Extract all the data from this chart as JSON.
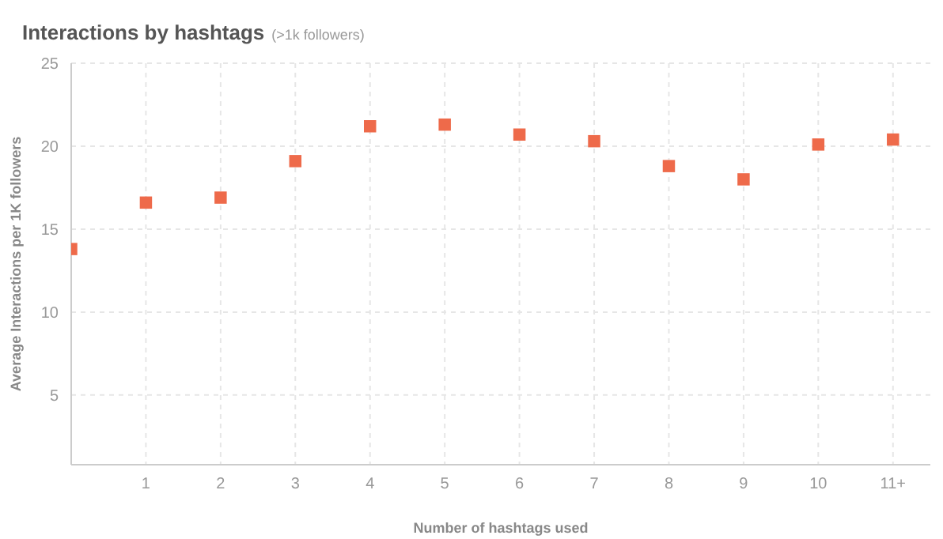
{
  "chart_data": {
    "type": "scatter",
    "title": "Interactions by hashtags",
    "subtitle": "(>1k followers)",
    "xlabel": "Number of hashtags used",
    "ylabel": "Average Interactions per 1K followers",
    "categories": [
      null,
      "1",
      "2",
      "3",
      "4",
      "5",
      "6",
      "7",
      "8",
      "9",
      "10",
      "11+"
    ],
    "series": [
      {
        "color": "#ee6a4a",
        "values": [
          13.8,
          16.6,
          16.9,
          19.1,
          21.2,
          21.3,
          20.7,
          20.3,
          18.8,
          18.0,
          20.1,
          20.4
        ]
      }
    ],
    "ylim": [
      0.8,
      25
    ],
    "yticks": [
      5,
      10,
      15,
      20,
      25
    ],
    "grid": true,
    "marker": "square"
  }
}
